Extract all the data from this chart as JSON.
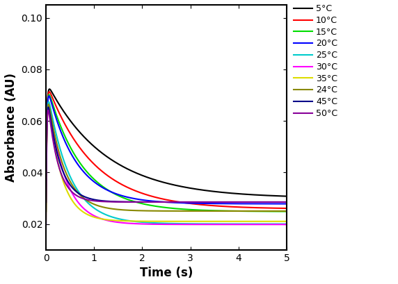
{
  "xlabel": "Time (s)",
  "ylabel": "Absorbance (AU)",
  "xlim": [
    0,
    5
  ],
  "ylim": [
    0.01,
    0.105
  ],
  "yticks": [
    0.02,
    0.04,
    0.06,
    0.08,
    0.1
  ],
  "xticks": [
    0,
    1,
    2,
    3,
    4,
    5
  ],
  "series": [
    {
      "label": "5°C",
      "color": "#000000",
      "peak": 0.0755,
      "k_rise": 60,
      "k_decay": 0.82,
      "C": 0.03
    },
    {
      "label": "10°C",
      "color": "#ff0000",
      "peak": 0.0755,
      "k_rise": 60,
      "k_decay": 1.05,
      "C": 0.0258
    },
    {
      "label": "15°C",
      "color": "#00dd00",
      "peak": 0.0755,
      "k_rise": 60,
      "k_decay": 1.4,
      "C": 0.0248
    },
    {
      "label": "20°C",
      "color": "#0000ff",
      "peak": 0.0755,
      "k_rise": 60,
      "k_decay": 1.72,
      "C": 0.0278
    },
    {
      "label": "25°C",
      "color": "#00cccc",
      "peak": 0.0755,
      "k_rise": 60,
      "k_decay": 2.2,
      "C": 0.02
    },
    {
      "label": "30°C",
      "color": "#ff00ff",
      "peak": 0.0755,
      "k_rise": 60,
      "k_decay": 2.8,
      "C": 0.0198
    },
    {
      "label": "35°C",
      "color": "#dddd00",
      "peak": 0.0755,
      "k_rise": 60,
      "k_decay": 3.5,
      "C": 0.021
    },
    {
      "label": "24°C",
      "color": "#888800",
      "peak": 0.0755,
      "k_rise": 60,
      "k_decay": 2.95,
      "C": 0.025
    },
    {
      "label": "45°C",
      "color": "#000088",
      "peak": 0.0755,
      "k_rise": 60,
      "k_decay": 3.9,
      "C": 0.0285
    },
    {
      "label": "50°C",
      "color": "#880099",
      "peak": 0.0755,
      "k_rise": 60,
      "k_decay": 4.6,
      "C": 0.0285
    }
  ],
  "lw": 1.5,
  "background": "#ffffff",
  "legend_fontsize": 9,
  "axis_fontsize": 12,
  "tick_fontsize": 10
}
